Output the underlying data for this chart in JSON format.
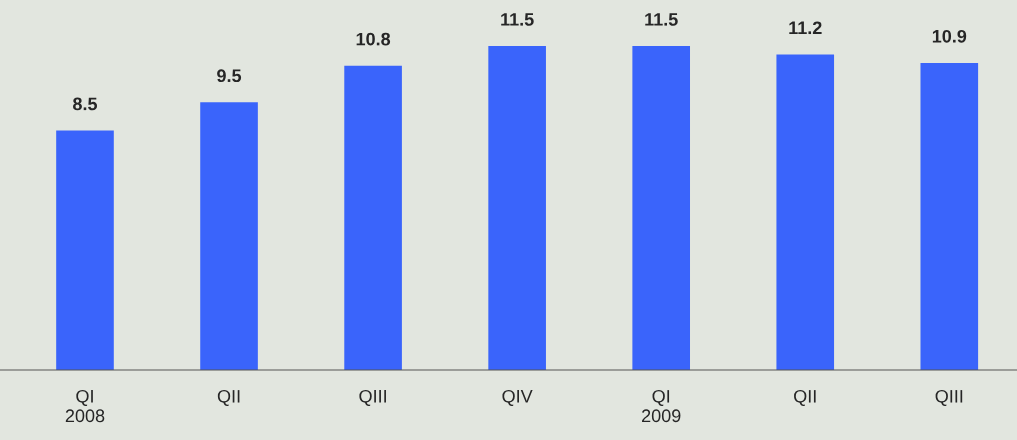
{
  "chart_data": {
    "type": "bar",
    "categories": [
      "QI\n2008",
      "QII",
      "QIII",
      "QIV",
      "QI\n2009",
      "QII",
      "QIII"
    ],
    "values": [
      8.5,
      9.5,
      10.8,
      11.5,
      11.5,
      11.2,
      10.9
    ],
    "color": "#3a64fb",
    "data_labels": true,
    "grid": false,
    "legend": false
  }
}
